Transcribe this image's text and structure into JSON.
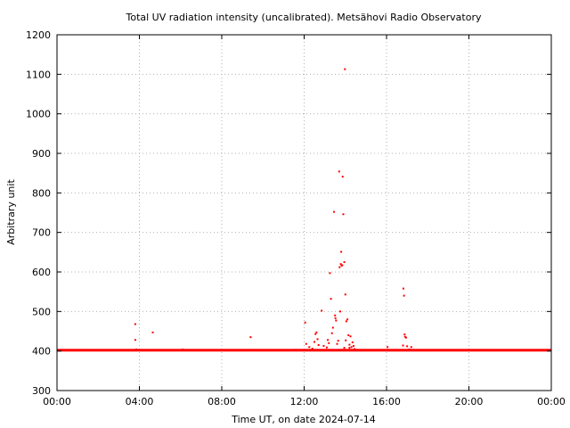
{
  "chart_data": {
    "type": "scatter",
    "title": "Total UV radiation intensity (uncalibrated). Metsähovi Radio Observatory",
    "xlabel": "Time UT, on date 2024-07-14",
    "ylabel": "Arbitrary unit",
    "xlim": [
      0,
      24
    ],
    "ylim": [
      300,
      1200
    ],
    "x_ticks": [
      0,
      4,
      8,
      12,
      16,
      20,
      24
    ],
    "x_tick_labels": [
      "00:00",
      "04:00",
      "08:00",
      "12:00",
      "16:00",
      "20:00",
      "00:00"
    ],
    "y_ticks": [
      300,
      400,
      500,
      600,
      700,
      800,
      900,
      1000,
      1100,
      1200
    ],
    "y_tick_labels": [
      "300",
      "400",
      "500",
      "600",
      "700",
      "800",
      "900",
      "1000",
      "1100",
      "1200"
    ],
    "grid": true,
    "marker_color": "#ff0000",
    "baseline": {
      "x_range": [
        0,
        24
      ],
      "y": 402
    },
    "series": [
      {
        "points": [
          [
            3.8,
            468
          ],
          [
            3.8,
            428
          ],
          [
            3.85,
            404
          ],
          [
            4.65,
            447
          ],
          [
            6.1,
            404
          ],
          [
            9.4,
            435
          ],
          [
            9.6,
            402
          ],
          [
            11.6,
            403
          ],
          [
            12.05,
            472
          ],
          [
            12.1,
            418
          ],
          [
            12.25,
            410
          ],
          [
            12.4,
            406
          ],
          [
            12.5,
            423
          ],
          [
            12.55,
            443
          ],
          [
            12.6,
            447
          ],
          [
            12.65,
            430
          ],
          [
            12.7,
            415
          ],
          [
            12.85,
            502
          ],
          [
            12.95,
            413
          ],
          [
            13.1,
            409
          ],
          [
            13.15,
            428
          ],
          [
            13.2,
            420
          ],
          [
            13.25,
            597
          ],
          [
            13.3,
            532
          ],
          [
            13.35,
            445
          ],
          [
            13.4,
            459
          ],
          [
            13.45,
            752
          ],
          [
            13.5,
            490
          ],
          [
            13.52,
            483
          ],
          [
            13.55,
            477
          ],
          [
            13.6,
            418
          ],
          [
            13.65,
            426
          ],
          [
            13.7,
            854
          ],
          [
            13.72,
            612
          ],
          [
            13.75,
            500
          ],
          [
            13.78,
            620
          ],
          [
            13.8,
            651
          ],
          [
            13.82,
            616
          ],
          [
            13.85,
            617
          ],
          [
            13.87,
            841
          ],
          [
            13.9,
            746
          ],
          [
            13.95,
            625
          ],
          [
            13.98,
            1113
          ],
          [
            14.0,
            543
          ],
          [
            14.02,
            427
          ],
          [
            14.05,
            475
          ],
          [
            14.1,
            480
          ],
          [
            14.15,
            440
          ],
          [
            14.2,
            416
          ],
          [
            14.25,
            437
          ],
          [
            14.3,
            410
          ],
          [
            14.35,
            422
          ],
          [
            14.4,
            413
          ],
          [
            14.45,
            405
          ],
          [
            14.2,
            408
          ],
          [
            13.95,
            408
          ],
          [
            16.05,
            410
          ],
          [
            16.8,
            414
          ],
          [
            16.82,
            558
          ],
          [
            16.85,
            540
          ],
          [
            16.88,
            442
          ],
          [
            16.9,
            436
          ],
          [
            16.95,
            434
          ],
          [
            17.0,
            412
          ],
          [
            17.1,
            404
          ],
          [
            17.2,
            410
          ]
        ]
      }
    ]
  }
}
